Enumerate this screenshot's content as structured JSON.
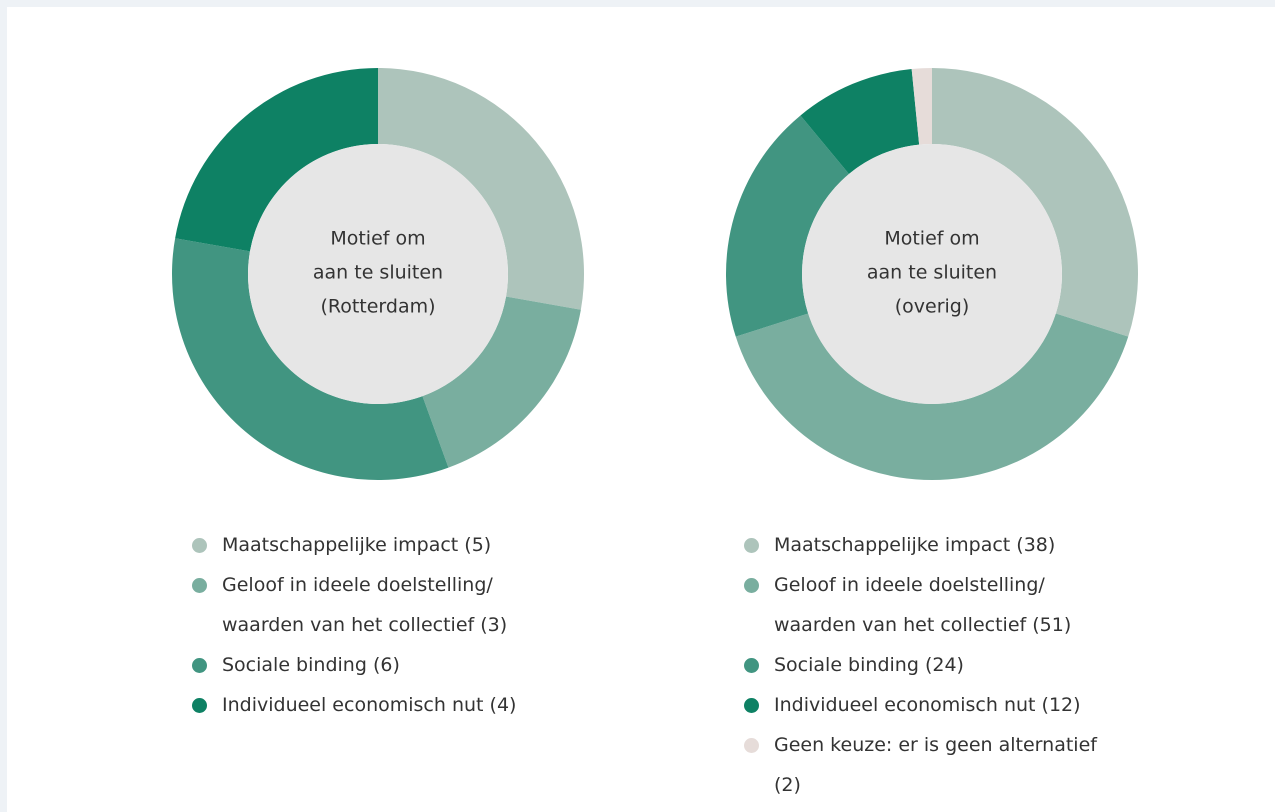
{
  "chart_data": [
    {
      "type": "donut",
      "title": [
        "Motief om",
        "aan te sluiten",
        "(Rotterdam)"
      ],
      "categories": [
        "Maatschappelijke impact",
        "Geloof in ideele doelstelling/ waarden van het collectief",
        "Sociale binding",
        "Individueel economisch nut"
      ],
      "values": [
        5,
        3,
        6,
        4
      ],
      "value_labels": [
        "(5)",
        "(3)",
        "(6)",
        "(4)"
      ],
      "colors": [
        "#adc4bb",
        "#79ae9f",
        "#419581",
        "#0e8164"
      ]
    },
    {
      "type": "donut",
      "title": [
        "Motief om",
        "aan te sluiten",
        "(overig)"
      ],
      "categories": [
        "Maatschappelijke impact",
        "Geloof in ideele doelstelling/ waarden van het collectief",
        "Sociale binding",
        "Individueel economisch nut",
        "Geen keuze: er is geen alternatief"
      ],
      "values": [
        38,
        51,
        24,
        12,
        2
      ],
      "value_labels": [
        "(38)",
        "(51)",
        "(24)",
        "(12)",
        "(2)"
      ],
      "colors": [
        "#adc4bb",
        "#79ae9f",
        "#419581",
        "#0e8164",
        "#e6dcd9"
      ]
    }
  ]
}
